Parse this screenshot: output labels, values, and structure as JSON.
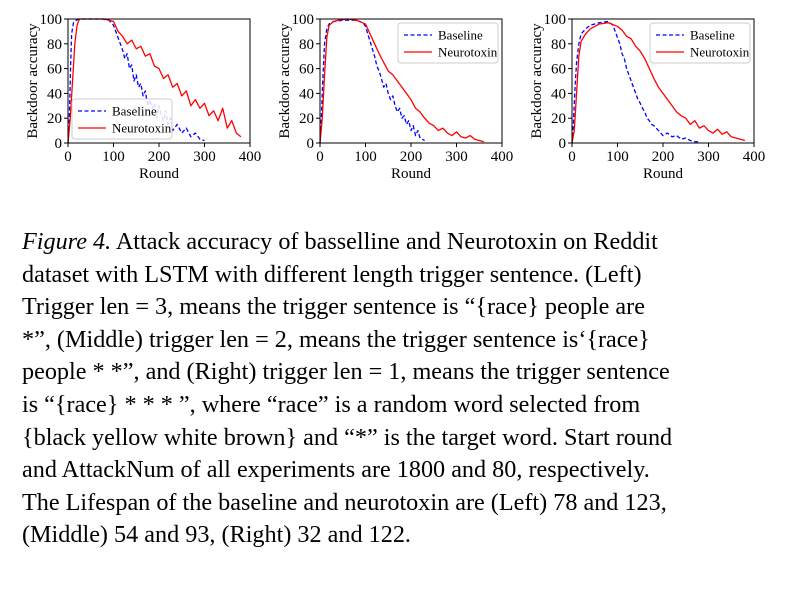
{
  "colors": {
    "baseline": "#0000ff",
    "neurotoxin": "#ff0000"
  },
  "chart_data": [
    {
      "type": "line",
      "panel": "Left",
      "xlabel": "Round",
      "ylabel": "Backdoor accuracy",
      "xlim": [
        0,
        400
      ],
      "ylim": [
        0,
        100
      ],
      "xticks": [
        0,
        100,
        200,
        300,
        400
      ],
      "yticks": [
        0,
        20,
        40,
        60,
        80,
        100
      ],
      "legend": "lower-left",
      "series": [
        {
          "name": "Baseline",
          "style": "dashed",
          "color": "#0000ff",
          "x": [
            0,
            2,
            4,
            6,
            8,
            12,
            18,
            25,
            30,
            50,
            75,
            90,
            100,
            110,
            120,
            125,
            130,
            135,
            140,
            145,
            150,
            155,
            160,
            165,
            170,
            175,
            180,
            185,
            190,
            195,
            200,
            205,
            210,
            215,
            220,
            225,
            230,
            240,
            250,
            260,
            270,
            280,
            290,
            300
          ],
          "y": [
            0,
            10,
            35,
            65,
            88,
            97,
            99,
            100,
            100,
            100,
            100,
            99,
            95,
            85,
            75,
            68,
            72,
            60,
            63,
            50,
            55,
            45,
            48,
            38,
            42,
            30,
            35,
            28,
            32,
            20,
            30,
            22,
            18,
            26,
            15,
            20,
            10,
            15,
            8,
            12,
            5,
            8,
            3,
            2
          ]
        },
        {
          "name": "Neurotoxin",
          "style": "solid",
          "color": "#ff0000",
          "x": [
            0,
            5,
            10,
            15,
            20,
            25,
            30,
            40,
            60,
            80,
            100,
            110,
            120,
            130,
            140,
            150,
            160,
            170,
            180,
            190,
            200,
            210,
            220,
            230,
            240,
            250,
            260,
            270,
            280,
            290,
            300,
            310,
            320,
            330,
            340,
            350,
            360,
            370,
            380
          ],
          "y": [
            0,
            20,
            50,
            80,
            95,
            100,
            100,
            100,
            100,
            100,
            98,
            90,
            86,
            80,
            83,
            76,
            78,
            70,
            72,
            62,
            60,
            52,
            55,
            45,
            48,
            38,
            42,
            30,
            35,
            28,
            32,
            22,
            26,
            18,
            28,
            12,
            18,
            8,
            5
          ]
        }
      ]
    },
    {
      "type": "line",
      "panel": "Middle",
      "xlabel": "Round",
      "ylabel": "Backdoor accuracy",
      "xlim": [
        0,
        400
      ],
      "ylim": [
        0,
        100
      ],
      "xticks": [
        0,
        100,
        200,
        300,
        400
      ],
      "yticks": [
        0,
        20,
        40,
        60,
        80,
        100
      ],
      "legend": "top-right",
      "series": [
        {
          "name": "Baseline",
          "style": "dashed",
          "color": "#0000ff",
          "x": [
            0,
            3,
            6,
            10,
            15,
            20,
            30,
            50,
            80,
            95,
            100,
            105,
            110,
            115,
            120,
            125,
            130,
            135,
            140,
            145,
            150,
            155,
            160,
            165,
            170,
            175,
            180,
            185,
            190,
            195,
            200,
            205,
            210,
            215,
            220,
            225,
            230
          ],
          "y": [
            0,
            20,
            50,
            80,
            92,
            96,
            98,
            99,
            99,
            97,
            94,
            88,
            82,
            76,
            70,
            62,
            58,
            52,
            45,
            48,
            40,
            35,
            38,
            30,
            25,
            28,
            20,
            22,
            15,
            18,
            10,
            14,
            6,
            10,
            4,
            3,
            2
          ]
        },
        {
          "name": "Neurotoxin",
          "style": "solid",
          "color": "#ff0000",
          "x": [
            0,
            5,
            10,
            15,
            20,
            30,
            40,
            60,
            80,
            100,
            110,
            120,
            130,
            140,
            150,
            160,
            170,
            180,
            190,
            200,
            210,
            220,
            230,
            240,
            250,
            260,
            270,
            280,
            290,
            300,
            310,
            320,
            330,
            340,
            350,
            360
          ],
          "y": [
            0,
            20,
            55,
            85,
            95,
            98,
            99,
            100,
            99,
            96,
            88,
            80,
            72,
            65,
            58,
            55,
            50,
            45,
            40,
            35,
            28,
            25,
            20,
            16,
            14,
            10,
            12,
            8,
            6,
            9,
            5,
            4,
            6,
            3,
            2,
            1
          ]
        }
      ]
    },
    {
      "type": "line",
      "panel": "Right",
      "xlabel": "Round",
      "ylabel": "Backdoor accuracy",
      "xlim": [
        0,
        400
      ],
      "ylim": [
        0,
        100
      ],
      "xticks": [
        0,
        100,
        200,
        300,
        400
      ],
      "yticks": [
        0,
        20,
        40,
        60,
        80,
        100
      ],
      "legend": "top-right",
      "series": [
        {
          "name": "Baseline",
          "style": "dashed",
          "color": "#0000ff",
          "x": [
            0,
            3,
            6,
            10,
            15,
            20,
            30,
            40,
            60,
            80,
            90,
            95,
            100,
            105,
            110,
            115,
            120,
            125,
            130,
            135,
            140,
            145,
            150,
            155,
            160,
            165,
            170,
            175,
            180,
            185,
            190,
            195,
            200,
            210,
            220,
            230,
            240,
            250,
            260,
            270,
            280
          ],
          "y": [
            0,
            15,
            40,
            65,
            80,
            88,
            92,
            95,
            97,
            98,
            95,
            90,
            85,
            80,
            72,
            68,
            60,
            55,
            50,
            45,
            40,
            35,
            32,
            28,
            25,
            20,
            18,
            15,
            14,
            12,
            10,
            8,
            6,
            8,
            5,
            6,
            3,
            4,
            2,
            1,
            1
          ]
        },
        {
          "name": "Neurotoxin",
          "style": "solid",
          "color": "#ff0000",
          "x": [
            0,
            5,
            10,
            15,
            20,
            30,
            40,
            60,
            80,
            100,
            110,
            120,
            130,
            140,
            150,
            160,
            170,
            180,
            190,
            200,
            210,
            220,
            230,
            240,
            250,
            260,
            270,
            280,
            290,
            300,
            310,
            320,
            330,
            340,
            350,
            360,
            370,
            380
          ],
          "y": [
            0,
            10,
            40,
            70,
            82,
            88,
            92,
            96,
            97,
            94,
            91,
            86,
            84,
            78,
            74,
            68,
            60,
            52,
            45,
            40,
            35,
            30,
            25,
            22,
            20,
            15,
            18,
            12,
            14,
            10,
            8,
            11,
            7,
            9,
            5,
            4,
            3,
            2
          ]
        }
      ]
    }
  ],
  "caption": {
    "label": "Figure 4.",
    "lines": [
      " Attack accuracy of basselline and Neurotoxin on Reddit",
      "dataset with LSTM with different length trigger sentence. (Left)",
      "Trigger len = 3, means the trigger sentence is “{race} people are",
      "*”, (Middle) trigger len = 2, means the trigger sentence is‘{race}",
      "people * *”, and (Right) trigger len = 1, means the trigger sentence",
      "is “{race} * * * ”, where “race” is a random word selected from",
      "{black yellow white brown} and “*” is the target word. Start round",
      "and AttackNum of all experiments are 1800 and 80, respectively.",
      "The Lifespan of the baseline and neurotoxin are (Left) 78 and 123,",
      "(Middle) 54 and 93, (Right) 32 and 122."
    ]
  }
}
